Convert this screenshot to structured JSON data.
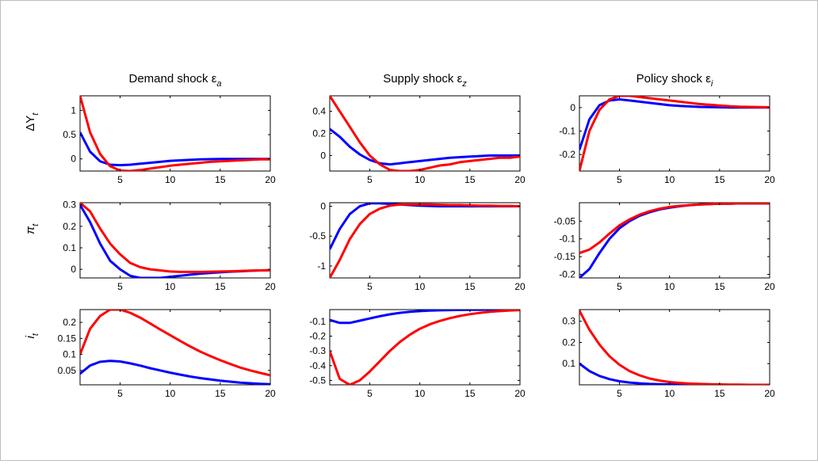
{
  "figure": {
    "columns": [
      {
        "title": "Demand shock ε",
        "sub": "a"
      },
      {
        "title": "Supply shock ε",
        "sub": "z"
      },
      {
        "title": "Policy shock ε",
        "sub": "i"
      }
    ],
    "rows": [
      {
        "label": "ΔY",
        "sub": "t"
      },
      {
        "label": "π",
        "sub": "t"
      },
      {
        "label": "i",
        "sub": "t"
      }
    ],
    "colors": {
      "blue": "#0000ff",
      "red": "#ff0000"
    }
  },
  "chart_data": [
    {
      "type": "line",
      "row": 0,
      "col": 0,
      "xlim": [
        1,
        20
      ],
      "ylim": [
        -0.25,
        1.3
      ],
      "xticks": [
        5,
        10,
        15,
        20
      ],
      "yticks": [
        0,
        0.5,
        1
      ],
      "ytick_labels": [
        "0",
        "0.5",
        "1"
      ],
      "x": [
        1,
        2,
        3,
        4,
        5,
        6,
        7,
        8,
        9,
        10,
        11,
        12,
        13,
        14,
        15,
        16,
        17,
        18,
        19,
        20
      ],
      "series": [
        {
          "color": "blue",
          "values": [
            0.55,
            0.15,
            -0.05,
            -0.12,
            -0.13,
            -0.12,
            -0.1,
            -0.08,
            -0.06,
            -0.04,
            -0.03,
            -0.02,
            -0.01,
            -0.005,
            0,
            0,
            0,
            0,
            0,
            0
          ]
        },
        {
          "color": "red",
          "values": [
            1.3,
            0.55,
            0.1,
            -0.15,
            -0.24,
            -0.25,
            -0.23,
            -0.2,
            -0.17,
            -0.14,
            -0.12,
            -0.1,
            -0.08,
            -0.06,
            -0.05,
            -0.04,
            -0.03,
            -0.02,
            -0.01,
            -0.01
          ]
        }
      ]
    },
    {
      "type": "line",
      "row": 0,
      "col": 1,
      "xlim": [
        1,
        20
      ],
      "ylim": [
        -0.14,
        0.54
      ],
      "xticks": [
        5,
        10,
        15,
        20
      ],
      "yticks": [
        0,
        0.2,
        0.4
      ],
      "ytick_labels": [
        "0",
        "0.2",
        "0.4"
      ],
      "x": [
        1,
        2,
        3,
        4,
        5,
        6,
        7,
        8,
        9,
        10,
        11,
        12,
        13,
        14,
        15,
        16,
        17,
        18,
        19,
        20
      ],
      "series": [
        {
          "color": "blue",
          "values": [
            0.24,
            0.17,
            0.08,
            0.01,
            -0.04,
            -0.07,
            -0.08,
            -0.07,
            -0.06,
            -0.05,
            -0.04,
            -0.03,
            -0.02,
            -0.015,
            -0.01,
            -0.005,
            0,
            0,
            0,
            0
          ]
        },
        {
          "color": "red",
          "values": [
            0.54,
            0.4,
            0.26,
            0.12,
            0,
            -0.08,
            -0.13,
            -0.14,
            -0.14,
            -0.13,
            -0.11,
            -0.09,
            -0.08,
            -0.06,
            -0.05,
            -0.04,
            -0.03,
            -0.02,
            -0.02,
            -0.01
          ]
        }
      ]
    },
    {
      "type": "line",
      "row": 0,
      "col": 2,
      "xlim": [
        1,
        20
      ],
      "ylim": [
        -0.27,
        0.05
      ],
      "xticks": [
        5,
        10,
        15,
        20
      ],
      "yticks": [
        -0.2,
        -0.1,
        0
      ],
      "ytick_labels": [
        "-0.2",
        "-0.1",
        "0"
      ],
      "x": [
        1,
        2,
        3,
        4,
        5,
        6,
        7,
        8,
        9,
        10,
        11,
        12,
        13,
        14,
        15,
        16,
        17,
        18,
        19,
        20
      ],
      "series": [
        {
          "color": "blue",
          "values": [
            -0.18,
            -0.05,
            0.01,
            0.03,
            0.035,
            0.03,
            0.025,
            0.02,
            0.015,
            0.01,
            0.007,
            0.005,
            0.003,
            0.002,
            0.001,
            0,
            0,
            0,
            0,
            0
          ]
        },
        {
          "color": "red",
          "values": [
            -0.27,
            -0.1,
            -0.01,
            0.035,
            0.05,
            0.05,
            0.045,
            0.04,
            0.035,
            0.03,
            0.025,
            0.02,
            0.015,
            0.012,
            0.009,
            0.006,
            0.004,
            0.003,
            0.002,
            0.001
          ]
        }
      ]
    },
    {
      "type": "line",
      "row": 1,
      "col": 0,
      "xlim": [
        1,
        20
      ],
      "ylim": [
        -0.04,
        0.31
      ],
      "xticks": [
        5,
        10,
        15,
        20
      ],
      "yticks": [
        0,
        0.1,
        0.2,
        0.3
      ],
      "ytick_labels": [
        "0",
        "0.1",
        "0.2",
        "0.3"
      ],
      "x": [
        1,
        2,
        3,
        4,
        5,
        6,
        7,
        8,
        9,
        10,
        11,
        12,
        13,
        14,
        15,
        16,
        17,
        18,
        19,
        20
      ],
      "series": [
        {
          "color": "blue",
          "values": [
            0.3,
            0.22,
            0.12,
            0.04,
            0,
            -0.03,
            -0.04,
            -0.04,
            -0.04,
            -0.035,
            -0.03,
            -0.025,
            -0.02,
            -0.017,
            -0.014,
            -0.011,
            -0.009,
            -0.007,
            -0.005,
            -0.004
          ]
        },
        {
          "color": "red",
          "values": [
            0.31,
            0.27,
            0.19,
            0.12,
            0.07,
            0.03,
            0.01,
            0,
            -0.005,
            -0.01,
            -0.012,
            -0.012,
            -0.012,
            -0.011,
            -0.01,
            -0.009,
            -0.008,
            -0.006,
            -0.005,
            -0.004
          ]
        }
      ]
    },
    {
      "type": "line",
      "row": 1,
      "col": 1,
      "xlim": [
        1,
        20
      ],
      "ylim": [
        -1.2,
        0.06
      ],
      "xticks": [
        5,
        10,
        15,
        20
      ],
      "yticks": [
        -1,
        -0.5,
        0
      ],
      "ytick_labels": [
        "-1",
        "-0.5",
        "0"
      ],
      "x": [
        1,
        2,
        3,
        4,
        5,
        6,
        7,
        8,
        9,
        10,
        11,
        12,
        13,
        14,
        15,
        16,
        17,
        18,
        19,
        20
      ],
      "series": [
        {
          "color": "blue",
          "values": [
            -0.72,
            -0.38,
            -0.13,
            0,
            0.05,
            0.05,
            0.04,
            0.03,
            0.02,
            0.01,
            0.005,
            0,
            0,
            0,
            0,
            0,
            0,
            0,
            0,
            0
          ]
        },
        {
          "color": "red",
          "values": [
            -1.2,
            -0.9,
            -0.55,
            -0.3,
            -0.13,
            -0.04,
            0.01,
            0.03,
            0.03,
            0.03,
            0.03,
            0.025,
            0.02,
            0.02,
            0.015,
            0.01,
            0.01,
            0.005,
            0.005,
            0
          ]
        }
      ]
    },
    {
      "type": "line",
      "row": 1,
      "col": 2,
      "xlim": [
        1,
        20
      ],
      "ylim": [
        -0.21,
        0.002
      ],
      "xticks": [
        5,
        10,
        15,
        20
      ],
      "yticks": [
        -0.2,
        -0.15,
        -0.1,
        -0.05
      ],
      "ytick_labels": [
        "-0.2",
        "-0.15",
        "-0.1",
        "-0.05"
      ],
      "x": [
        1,
        2,
        3,
        4,
        5,
        6,
        7,
        8,
        9,
        10,
        11,
        12,
        13,
        14,
        15,
        16,
        17,
        18,
        19,
        20
      ],
      "series": [
        {
          "color": "blue",
          "values": [
            -0.21,
            -0.185,
            -0.14,
            -0.1,
            -0.07,
            -0.05,
            -0.035,
            -0.025,
            -0.017,
            -0.012,
            -0.008,
            -0.005,
            -0.003,
            -0.002,
            -0.001,
            -0.001,
            0,
            0,
            0,
            0
          ]
        },
        {
          "color": "red",
          "values": [
            -0.14,
            -0.13,
            -0.11,
            -0.085,
            -0.062,
            -0.045,
            -0.032,
            -0.022,
            -0.015,
            -0.01,
            -0.007,
            -0.005,
            -0.003,
            -0.002,
            -0.001,
            -0.001,
            0,
            0,
            0,
            0
          ]
        }
      ]
    },
    {
      "type": "line",
      "row": 2,
      "col": 0,
      "xlim": [
        1,
        20
      ],
      "ylim": [
        0.005,
        0.24
      ],
      "xticks": [
        5,
        10,
        15,
        20
      ],
      "yticks": [
        0.05,
        0.1,
        0.15,
        0.2
      ],
      "ytick_labels": [
        "0.05",
        "0.1",
        "0.15",
        "0.2"
      ],
      "x": [
        1,
        2,
        3,
        4,
        5,
        6,
        7,
        8,
        9,
        10,
        11,
        12,
        13,
        14,
        15,
        16,
        17,
        18,
        19,
        20
      ],
      "series": [
        {
          "color": "blue",
          "values": [
            0.04,
            0.065,
            0.077,
            0.08,
            0.078,
            0.072,
            0.065,
            0.057,
            0.05,
            0.043,
            0.037,
            0.031,
            0.026,
            0.022,
            0.018,
            0.015,
            0.012,
            0.01,
            0.008,
            0.007
          ]
        },
        {
          "color": "red",
          "values": [
            0.1,
            0.18,
            0.22,
            0.24,
            0.24,
            0.23,
            0.215,
            0.197,
            0.178,
            0.16,
            0.142,
            0.125,
            0.109,
            0.095,
            0.082,
            0.07,
            0.059,
            0.05,
            0.042,
            0.035
          ]
        }
      ]
    },
    {
      "type": "line",
      "row": 2,
      "col": 1,
      "xlim": [
        1,
        20
      ],
      "ylim": [
        -0.53,
        -0.02
      ],
      "xticks": [
        5,
        10,
        15,
        20
      ],
      "yticks": [
        -0.5,
        -0.4,
        -0.3,
        -0.2,
        -0.1
      ],
      "ytick_labels": [
        "-0.5",
        "-0.4",
        "-0.3",
        "-0.2",
        "-0.1"
      ],
      "x": [
        1,
        2,
        3,
        4,
        5,
        6,
        7,
        8,
        9,
        10,
        11,
        12,
        13,
        14,
        15,
        16,
        17,
        18,
        19,
        20
      ],
      "series": [
        {
          "color": "blue",
          "values": [
            -0.09,
            -0.11,
            -0.11,
            -0.095,
            -0.08,
            -0.065,
            -0.052,
            -0.042,
            -0.035,
            -0.03,
            -0.027,
            -0.025,
            -0.023,
            -0.022,
            -0.021,
            -0.021,
            -0.02,
            -0.02,
            -0.02,
            -0.02
          ]
        },
        {
          "color": "red",
          "values": [
            -0.3,
            -0.49,
            -0.53,
            -0.5,
            -0.44,
            -0.37,
            -0.3,
            -0.24,
            -0.19,
            -0.15,
            -0.12,
            -0.097,
            -0.078,
            -0.063,
            -0.051,
            -0.042,
            -0.035,
            -0.03,
            -0.026,
            -0.023
          ]
        }
      ]
    },
    {
      "type": "line",
      "row": 2,
      "col": 2,
      "xlim": [
        1,
        20
      ],
      "ylim": [
        0,
        0.355
      ],
      "xticks": [
        5,
        10,
        15,
        20
      ],
      "yticks": [
        0.1,
        0.2,
        0.3
      ],
      "ytick_labels": [
        "0.1",
        "0.2",
        "0.3"
      ],
      "x": [
        1,
        2,
        3,
        4,
        5,
        6,
        7,
        8,
        9,
        10,
        11,
        12,
        13,
        14,
        15,
        16,
        17,
        18,
        19,
        20
      ],
      "series": [
        {
          "color": "blue",
          "values": [
            0.1,
            0.065,
            0.042,
            0.027,
            0.017,
            0.011,
            0.007,
            0.004,
            0.003,
            0.002,
            0.001,
            0.001,
            0,
            0,
            0,
            0,
            0,
            0,
            0,
            0
          ]
        },
        {
          "color": "red",
          "values": [
            0.35,
            0.26,
            0.19,
            0.135,
            0.095,
            0.065,
            0.045,
            0.03,
            0.02,
            0.013,
            0.009,
            0.006,
            0.004,
            0.003,
            0.002,
            0.001,
            0.001,
            0,
            0,
            0
          ]
        }
      ]
    }
  ]
}
